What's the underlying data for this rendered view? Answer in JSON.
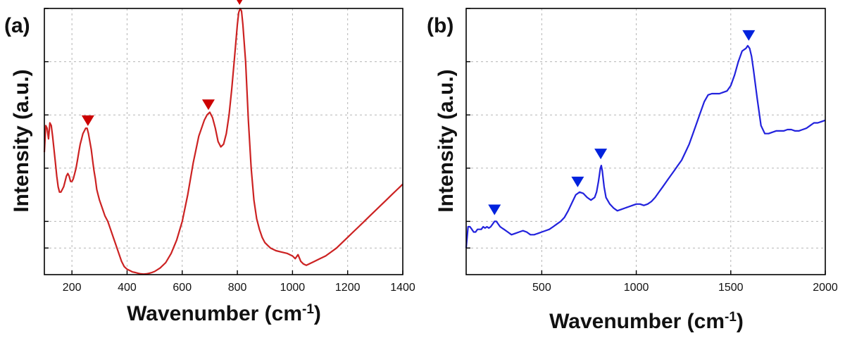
{
  "chart_data": [
    {
      "type": "line",
      "panel": "(a)",
      "xlabel": "Wavenumber (cm",
      "xlabel_sup": "-1",
      "xlabel_close": ")",
      "ylabel": "Intensity (a.u.)",
      "xlim": [
        100,
        1400
      ],
      "ylim": [
        0,
        1
      ],
      "xticks": [
        200,
        400,
        600,
        800,
        1000,
        1200,
        1400
      ],
      "ytick_positions": [
        0.1,
        0.2,
        0.4,
        0.6,
        0.8,
        1.0
      ],
      "grid": true,
      "color": "#cc2222",
      "marker_color": "#cc0000",
      "markers": [
        {
          "x": 258,
          "y": 0.54
        },
        {
          "x": 695,
          "y": 0.6
        },
        {
          "x": 808,
          "y": 0.995
        }
      ],
      "series": [
        {
          "x": [
            100,
            105,
            110,
            115,
            120,
            125,
            130,
            135,
            140,
            145,
            150,
            155,
            160,
            165,
            170,
            175,
            180,
            185,
            190,
            195,
            200,
            205,
            210,
            215,
            220,
            225,
            230,
            235,
            240,
            245,
            250,
            255,
            260,
            265,
            270,
            275,
            280,
            285,
            290,
            295,
            300,
            310,
            320,
            330,
            340,
            350,
            360,
            370,
            380,
            390,
            400,
            410,
            420,
            430,
            440,
            450,
            460,
            470,
            480,
            490,
            500,
            520,
            540,
            560,
            580,
            600,
            620,
            640,
            660,
            680,
            690,
            700,
            710,
            720,
            730,
            740,
            750,
            760,
            770,
            780,
            790,
            800,
            805,
            810,
            815,
            820,
            830,
            840,
            850,
            860,
            870,
            880,
            890,
            900,
            910,
            920,
            930,
            940,
            960,
            980,
            1000,
            1010,
            1020,
            1030,
            1040,
            1050,
            1060,
            1080,
            1100,
            1120,
            1140,
            1160,
            1180,
            1200,
            1220,
            1240,
            1260,
            1280,
            1300,
            1320,
            1340,
            1360,
            1380,
            1390,
            1400
          ],
          "y": [
            0.46,
            0.56,
            0.55,
            0.51,
            0.57,
            0.56,
            0.52,
            0.47,
            0.42,
            0.37,
            0.33,
            0.31,
            0.31,
            0.32,
            0.33,
            0.35,
            0.37,
            0.38,
            0.37,
            0.35,
            0.35,
            0.36,
            0.38,
            0.4,
            0.43,
            0.46,
            0.49,
            0.51,
            0.53,
            0.54,
            0.55,
            0.55,
            0.53,
            0.5,
            0.47,
            0.43,
            0.39,
            0.36,
            0.32,
            0.3,
            0.28,
            0.25,
            0.22,
            0.2,
            0.17,
            0.14,
            0.11,
            0.08,
            0.05,
            0.03,
            0.02,
            0.015,
            0.01,
            0.008,
            0.005,
            0.003,
            0.002,
            0.003,
            0.005,
            0.008,
            0.012,
            0.025,
            0.045,
            0.08,
            0.13,
            0.2,
            0.3,
            0.42,
            0.52,
            0.58,
            0.6,
            0.61,
            0.59,
            0.55,
            0.5,
            0.48,
            0.49,
            0.53,
            0.6,
            0.7,
            0.82,
            0.94,
            0.985,
            1.0,
            0.99,
            0.94,
            0.8,
            0.58,
            0.4,
            0.28,
            0.21,
            0.17,
            0.14,
            0.12,
            0.11,
            0.1,
            0.095,
            0.09,
            0.085,
            0.08,
            0.07,
            0.06,
            0.075,
            0.05,
            0.04,
            0.035,
            0.04,
            0.05,
            0.06,
            0.07,
            0.085,
            0.1,
            0.12,
            0.14,
            0.16,
            0.18,
            0.2,
            0.22,
            0.24,
            0.26,
            0.28,
            0.3,
            0.32,
            0.33,
            0.34
          ]
        }
      ]
    },
    {
      "type": "line",
      "panel": "(b)",
      "xlabel": "Wavenumber (cm",
      "xlabel_sup": "-1",
      "xlabel_close": ")",
      "ylabel": "Intensity (a.u.)",
      "xlim": [
        100,
        2000
      ],
      "ylim": [
        0,
        1
      ],
      "xticks": [
        500,
        1000,
        1500,
        2000
      ],
      "ytick_positions": [
        0.1,
        0.2,
        0.4,
        0.6,
        0.8,
        1.0
      ],
      "grid": true,
      "color": "#2222dd",
      "marker_color": "#0022dd",
      "markers": [
        {
          "x": 250,
          "y": 0.205
        },
        {
          "x": 690,
          "y": 0.31
        },
        {
          "x": 812,
          "y": 0.415
        },
        {
          "x": 1595,
          "y": 0.86
        }
      ],
      "series": [
        {
          "x": [
            100,
            110,
            120,
            130,
            140,
            150,
            160,
            170,
            180,
            190,
            200,
            210,
            220,
            230,
            240,
            250,
            260,
            270,
            280,
            290,
            300,
            320,
            340,
            360,
            380,
            400,
            420,
            440,
            460,
            480,
            500,
            520,
            540,
            560,
            580,
            600,
            620,
            640,
            660,
            680,
            700,
            720,
            740,
            760,
            780,
            790,
            800,
            810,
            815,
            820,
            830,
            840,
            860,
            880,
            900,
            920,
            940,
            960,
            980,
            1000,
            1020,
            1040,
            1060,
            1080,
            1100,
            1120,
            1140,
            1160,
            1180,
            1200,
            1220,
            1240,
            1260,
            1280,
            1300,
            1320,
            1340,
            1360,
            1380,
            1400,
            1420,
            1440,
            1460,
            1480,
            1500,
            1520,
            1540,
            1560,
            1580,
            1590,
            1600,
            1610,
            1620,
            1640,
            1660,
            1680,
            1700,
            1720,
            1740,
            1760,
            1780,
            1800,
            1820,
            1840,
            1860,
            1880,
            1900,
            1920,
            1940,
            1960,
            1980,
            2000
          ],
          "y": [
            0.1,
            0.18,
            0.18,
            0.17,
            0.16,
            0.16,
            0.17,
            0.17,
            0.17,
            0.18,
            0.175,
            0.18,
            0.175,
            0.18,
            0.19,
            0.2,
            0.2,
            0.19,
            0.18,
            0.175,
            0.17,
            0.16,
            0.15,
            0.155,
            0.16,
            0.165,
            0.16,
            0.15,
            0.15,
            0.155,
            0.16,
            0.165,
            0.17,
            0.18,
            0.19,
            0.2,
            0.215,
            0.24,
            0.27,
            0.3,
            0.31,
            0.305,
            0.29,
            0.28,
            0.29,
            0.31,
            0.35,
            0.4,
            0.41,
            0.39,
            0.33,
            0.29,
            0.265,
            0.25,
            0.24,
            0.245,
            0.25,
            0.255,
            0.26,
            0.265,
            0.265,
            0.26,
            0.265,
            0.275,
            0.29,
            0.31,
            0.33,
            0.35,
            0.37,
            0.39,
            0.41,
            0.43,
            0.46,
            0.49,
            0.53,
            0.57,
            0.61,
            0.65,
            0.675,
            0.68,
            0.68,
            0.68,
            0.685,
            0.69,
            0.71,
            0.75,
            0.8,
            0.84,
            0.85,
            0.86,
            0.85,
            0.82,
            0.77,
            0.66,
            0.56,
            0.53,
            0.53,
            0.535,
            0.54,
            0.54,
            0.54,
            0.545,
            0.545,
            0.54,
            0.54,
            0.545,
            0.55,
            0.56,
            0.57,
            0.57,
            0.575,
            0.58
          ]
        }
      ]
    }
  ]
}
